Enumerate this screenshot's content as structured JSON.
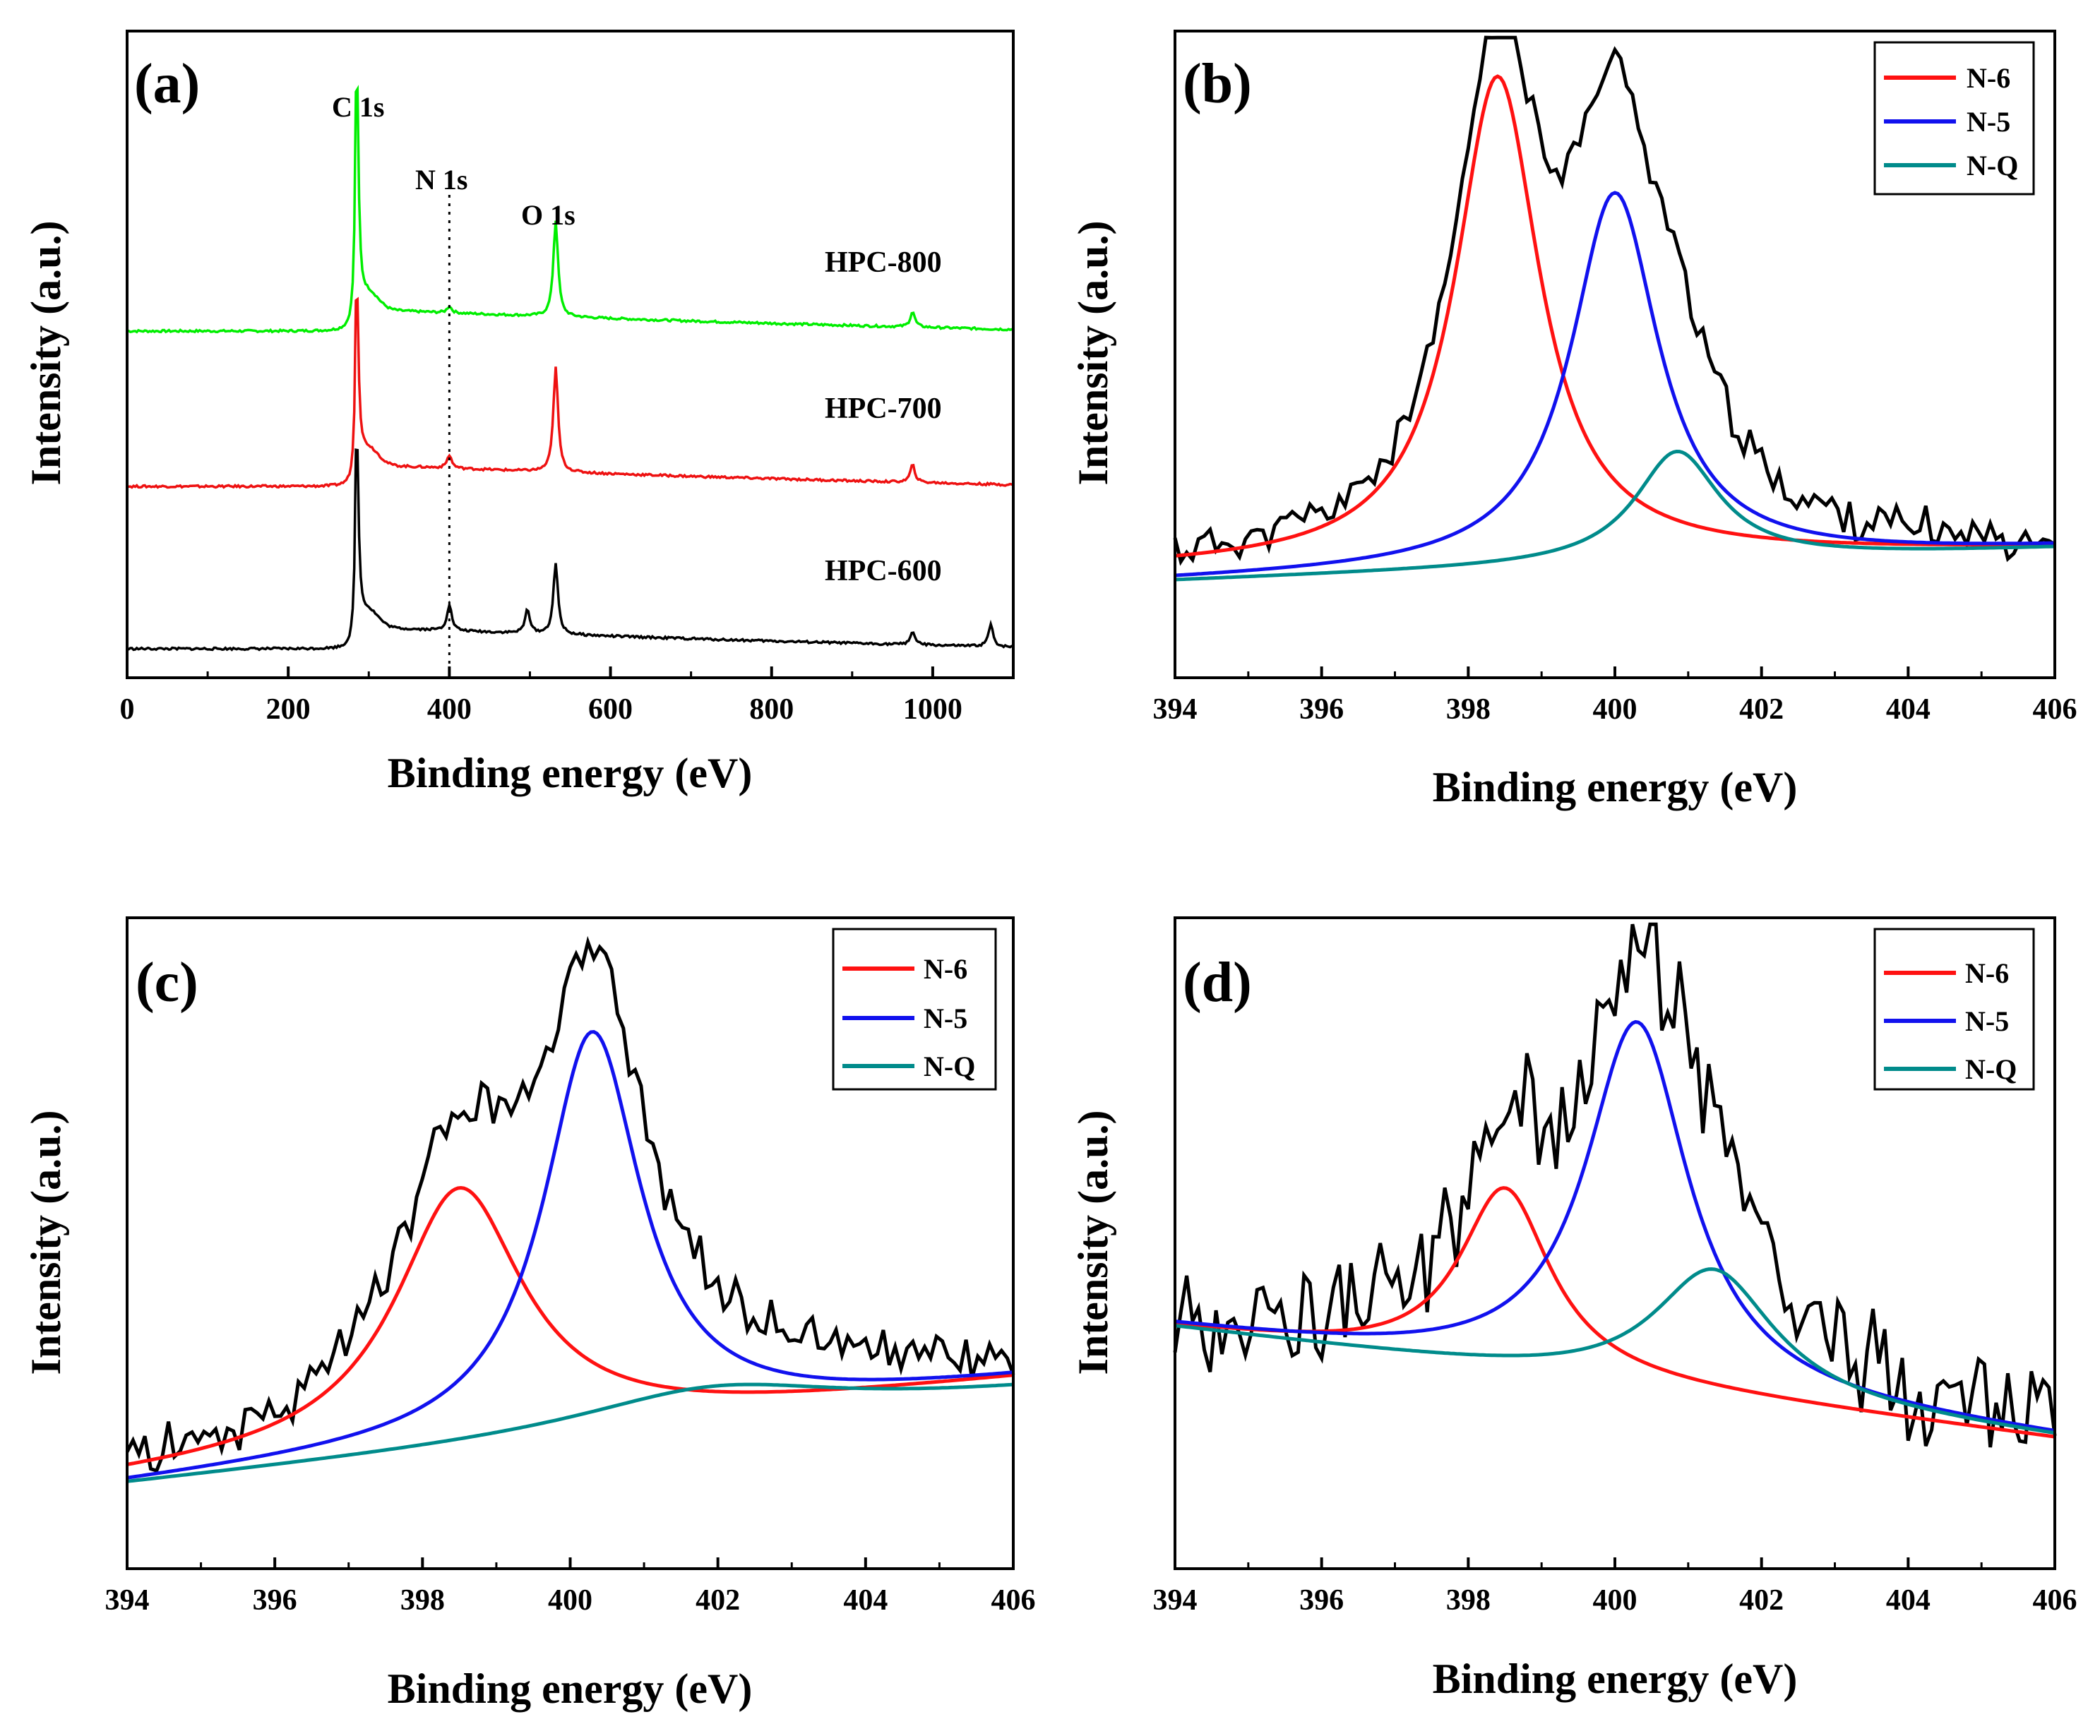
{
  "panels": [
    {
      "id": "a",
      "label": "(a)",
      "xlabel": "Binding energy (eV)",
      "ylabel": "Intensity (a.u.)",
      "xlim": [
        0,
        1100
      ],
      "xticks": [
        "0",
        "200",
        "400",
        "600",
        "800",
        "1000"
      ],
      "annotations": [
        "C 1s",
        "N 1s",
        "O 1s"
      ],
      "samples": [
        "HPC-800",
        "HPC-700",
        "HPC-600"
      ]
    },
    {
      "id": "b",
      "label": "(b)",
      "xlabel": "Binding energy (eV)",
      "ylabel": "Intensity (a.u.)",
      "xlim": [
        394,
        406
      ],
      "xticks": [
        "394",
        "396",
        "398",
        "400",
        "402",
        "404",
        "406"
      ],
      "legend": [
        "N-6",
        "N-5",
        "N-Q"
      ]
    },
    {
      "id": "c",
      "label": "(c)",
      "xlabel": "Binding energy (eV)",
      "ylabel": "Intensity (a.u.)",
      "xlim": [
        394,
        406
      ],
      "xticks": [
        "394",
        "396",
        "398",
        "400",
        "402",
        "404",
        "406"
      ],
      "legend": [
        "N-6",
        "N-5",
        "N-Q"
      ]
    },
    {
      "id": "d",
      "label": "(d)",
      "xlabel": "Binding energy (eV)",
      "ylabel": "Intensity (a.u.)",
      "xlim": [
        394,
        406
      ],
      "xticks": [
        "394",
        "396",
        "398",
        "400",
        "402",
        "404",
        "406"
      ],
      "legend": [
        "N-6",
        "N-5",
        "N-Q"
      ]
    }
  ],
  "chart_data": [
    {
      "panel": "a",
      "type": "line",
      "title": "",
      "xlabel": "Binding energy (eV)",
      "ylabel": "Intensity (a.u.)",
      "xlim": [
        0,
        1100
      ],
      "grid": false,
      "peak_annotations": [
        {
          "text": "C 1s",
          "x": 285
        },
        {
          "text": "N 1s",
          "x": 400
        },
        {
          "text": "O 1s",
          "x": 532
        }
      ],
      "series": [
        {
          "name": "HPC-800",
          "color": "#00ee00",
          "offset": 2,
          "peaks": [
            {
              "x": 285,
              "h": 5.6
            },
            {
              "x": 400,
              "h": 0.15
            },
            {
              "x": 532,
              "h": 2.2
            },
            {
              "x": 975,
              "h": 0.35
            }
          ]
        },
        {
          "name": "HPC-700",
          "color": "#ee1111",
          "offset": 1,
          "peaks": [
            {
              "x": 285,
              "h": 4.2
            },
            {
              "x": 400,
              "h": 0.3
            },
            {
              "x": 532,
              "h": 2.4
            },
            {
              "x": 975,
              "h": 0.4
            }
          ]
        },
        {
          "name": "HPC-600",
          "color": "#000000",
          "offset": 0,
          "peaks": [
            {
              "x": 285,
              "h": 4.5
            },
            {
              "x": 400,
              "h": 0.6
            },
            {
              "x": 497,
              "h": 0.55
            },
            {
              "x": 532,
              "h": 1.6
            },
            {
              "x": 975,
              "h": 0.3
            },
            {
              "x": 1072,
              "h": 0.5
            }
          ]
        }
      ]
    },
    {
      "panel": "b",
      "type": "line",
      "title": "",
      "xlabel": "Binding energy (eV)",
      "ylabel": "Intensity (a.u.)",
      "xlim": [
        394,
        406
      ],
      "ylim": [
        0,
        1
      ],
      "legend_position": "top-right",
      "series": [
        {
          "name": "N-6",
          "color": "#ff1111",
          "center": 398.4,
          "height": 0.93,
          "fwhm": 1.4,
          "baseline_left": 0.17,
          "baseline_right": 0.2
        },
        {
          "name": "N-5",
          "color": "#1111ee",
          "center": 400.0,
          "height": 0.75,
          "fwhm": 1.45,
          "baseline_left": 0.15,
          "baseline_right": 0.2
        },
        {
          "name": "N-Q",
          "color": "#008b8b",
          "center": 400.85,
          "height": 0.35,
          "fwhm": 1.4,
          "baseline_left": 0.15,
          "baseline_right": 0.2
        }
      ],
      "raw_color": "#000000",
      "noise": 0.025
    },
    {
      "panel": "c",
      "type": "line",
      "title": "",
      "xlabel": "Binding energy (eV)",
      "ylabel": "Intensity (a.u.)",
      "xlim": [
        394,
        406
      ],
      "ylim": [
        0,
        1
      ],
      "legend_position": "top-right",
      "series": [
        {
          "name": "N-6",
          "color": "#ff1111",
          "center": 398.5,
          "height": 0.585,
          "fwhm": 2.1,
          "baseline_left": 0.14,
          "baseline_right": 0.29
        },
        {
          "name": "N-5",
          "color": "#1111ee",
          "center": 400.3,
          "height": 0.825,
          "fwhm": 1.6,
          "baseline_left": 0.13,
          "baseline_right": 0.29
        },
        {
          "name": "N-Q",
          "color": "#008b8b",
          "center": 401.9,
          "height": 0.28,
          "fwhm": 4.4,
          "baseline_left": 0.13,
          "baseline_right": 0.27
        }
      ],
      "raw_color": "#000000",
      "noise": 0.03
    },
    {
      "panel": "d",
      "type": "line",
      "title": "",
      "xlabel": "Binding energy (eV)",
      "ylabel": "Intensity (a.u.)",
      "xlim": [
        394,
        406
      ],
      "ylim": [
        0,
        1
      ],
      "legend_position": "top-right",
      "series": [
        {
          "name": "N-6",
          "color": "#ff1111",
          "center": 398.5,
          "height": 0.585,
          "fwhm": 1.5,
          "baseline_left": 0.37,
          "baseline_right": 0.2
        },
        {
          "name": "N-5",
          "color": "#1111ee",
          "center": 400.3,
          "height": 0.84,
          "fwhm": 1.7,
          "baseline_left": 0.37,
          "baseline_right": 0.2
        },
        {
          "name": "N-Q",
          "color": "#008b8b",
          "center": 401.35,
          "height": 0.46,
          "fwhm": 2.0,
          "baseline_left": 0.37,
          "baseline_right": 0.2
        }
      ],
      "raw_color": "#000000",
      "noise": 0.07
    }
  ]
}
